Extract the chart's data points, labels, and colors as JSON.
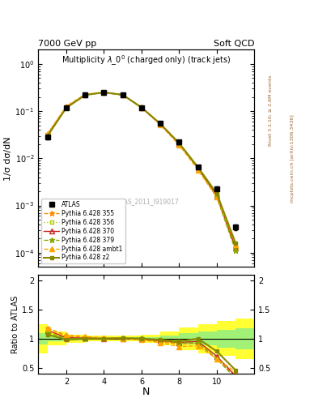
{
  "title_main": "Multiplicity $\\lambda\\_0^0$ (charged only) (track jets)",
  "top_left_label": "7000 GeV pp",
  "top_right_label": "Soft QCD",
  "right_label_top": "Rivet 3.1.10; ≥ 2.6M events",
  "right_label_bottom": "mcplots.cern.ch [arXiv:1306.3436]",
  "watermark": "ATLAS_2011_I919017",
  "ylabel_top": "1/σ dσ/dN",
  "ylabel_bottom": "Ratio to ATLAS",
  "xlabel": "N",
  "N_values": [
    1,
    2,
    3,
    4,
    5,
    6,
    7,
    8,
    9,
    10,
    11
  ],
  "ATLAS_data": [
    0.028,
    0.12,
    0.22,
    0.25,
    0.22,
    0.12,
    0.055,
    0.022,
    0.0065,
    0.0023,
    0.00035
  ],
  "ATLAS_yerr": [
    0.003,
    0.005,
    0.008,
    0.009,
    0.008,
    0.005,
    0.003,
    0.0015,
    0.0005,
    0.0002,
    5e-05
  ],
  "p355_data": [
    0.033,
    0.125,
    0.225,
    0.252,
    0.22,
    0.118,
    0.052,
    0.02,
    0.006,
    0.0015,
    0.00012
  ],
  "p356_data": [
    0.03,
    0.118,
    0.22,
    0.25,
    0.222,
    0.12,
    0.054,
    0.021,
    0.0062,
    0.0016,
    0.00013
  ],
  "p370_data": [
    0.032,
    0.122,
    0.222,
    0.251,
    0.221,
    0.119,
    0.053,
    0.0205,
    0.0062,
    0.0016,
    0.000125
  ],
  "p379_data": [
    0.031,
    0.12,
    0.221,
    0.251,
    0.222,
    0.121,
    0.053,
    0.0205,
    0.006,
    0.0015,
    0.00011
  ],
  "pambt1_data": [
    0.033,
    0.128,
    0.228,
    0.254,
    0.221,
    0.118,
    0.051,
    0.019,
    0.0057,
    0.0015,
    0.00015
  ],
  "pz2_data": [
    0.03,
    0.118,
    0.22,
    0.25,
    0.222,
    0.12,
    0.054,
    0.021,
    0.0065,
    0.0018,
    0.00016
  ],
  "colors": {
    "p355": "#FF8C00",
    "p356": "#AACC00",
    "p370": "#CC2222",
    "p379": "#88AA00",
    "pambt1": "#FFA500",
    "pz2": "#888800"
  },
  "green_band_x": [
    0.5,
    1.5,
    2.5,
    3.5,
    4.5,
    5.5,
    6.5,
    7.5,
    8.5,
    9.5,
    10.5,
    11.5
  ],
  "green_ylo": [
    0.9,
    0.95,
    0.97,
    0.98,
    0.98,
    0.98,
    0.97,
    0.95,
    0.9,
    0.88,
    0.85,
    0.82
  ],
  "green_yhi": [
    1.1,
    1.05,
    1.03,
    1.02,
    1.02,
    1.02,
    1.03,
    1.05,
    1.1,
    1.12,
    1.15,
    1.18
  ],
  "yellow_ylo": [
    0.75,
    0.88,
    0.93,
    0.95,
    0.95,
    0.95,
    0.93,
    0.88,
    0.8,
    0.75,
    0.7,
    0.65
  ],
  "yellow_yhi": [
    1.25,
    1.12,
    1.07,
    1.05,
    1.05,
    1.05,
    1.07,
    1.12,
    1.2,
    1.25,
    1.3,
    1.35
  ]
}
